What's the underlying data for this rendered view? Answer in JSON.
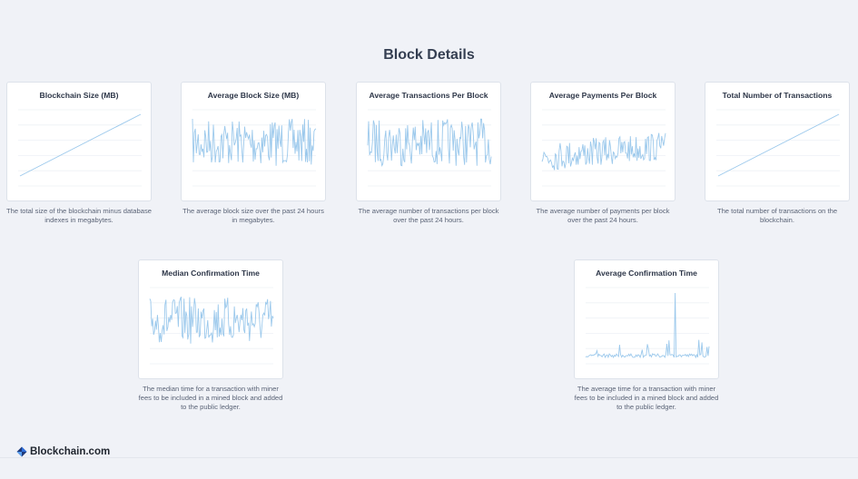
{
  "page": {
    "title": "Block Details"
  },
  "colors": {
    "line": "#9cc9ec",
    "grid": "#eef1f5",
    "background": "#f0f2f7"
  },
  "cards": [
    {
      "title": "Blockchain Size (MB)",
      "description": "The total size of the blockchain minus database indexes in megabytes.",
      "chart": "linear-growth"
    },
    {
      "title": "Average Block Size (MB)",
      "description": "The average block size over the past 24 hours in megabytes.",
      "chart": "noisy"
    },
    {
      "title": "Average Transactions Per Block",
      "description": "The average number of transactions per block over the past 24 hours.",
      "chart": "noisy"
    },
    {
      "title": "Average Payments Per Block",
      "description": "The average number of payments per block over the past 24 hours.",
      "chart": "noisy-rising"
    },
    {
      "title": "Total Number of Transactions",
      "description": "The total number of transactions on the blockchain.",
      "chart": "linear-growth"
    },
    {
      "title": "Median Confirmation Time",
      "description": "The median time for a transaction with miner fees to be included in a mined block and added to the public ledger.",
      "chart": "noisy"
    },
    {
      "title": "Average Confirmation Time",
      "description": "The average time for a transaction with miner fees to be included in a mined block and added to the public ledger.",
      "chart": "spiky"
    }
  ],
  "footer": {
    "brand": "Blockchain.com",
    "logo_icon": "blockchain-logo-icon"
  }
}
